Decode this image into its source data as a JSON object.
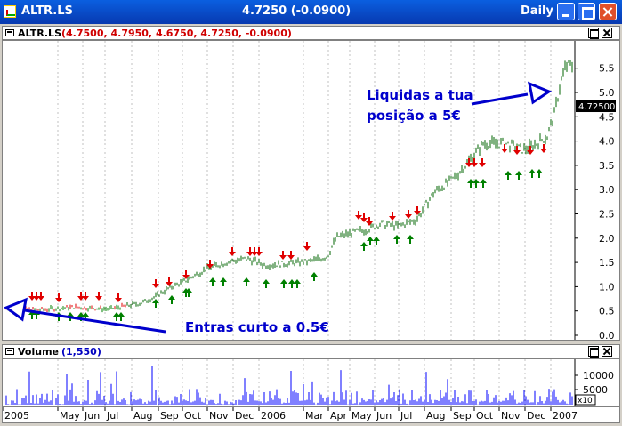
{
  "window": {
    "symbol": "ALTR.LS",
    "price_change": "4.7250 (-0.0900)",
    "period": "Daily"
  },
  "price_pane": {
    "symbol": "ALTR.LS",
    "ohlc": "(4.7500, 4.7950, 4.6750, 4.7250, -0.0900)",
    "last_price_label": "4.72500",
    "y_ticks": [
      "5.5",
      "5.0",
      "4.5",
      "4.0",
      "3.5",
      "3.0",
      "2.5",
      "2.0",
      "1.5",
      "1.0",
      "0.5",
      "0.0"
    ]
  },
  "volume_pane": {
    "label": "Volume",
    "value": "(1,550)",
    "y_ticks": [
      "10000",
      "5000"
    ],
    "multiplier": "x10"
  },
  "x_axis": {
    "labels": [
      "2005",
      "May",
      "Jun",
      "Jul",
      "Aug",
      "Sep",
      "Oct",
      "Nov",
      "Dec",
      "2006",
      "Mar",
      "Apr",
      "May",
      "Jun",
      "Jul",
      "Aug",
      "Sep",
      "Oct",
      "Nov",
      "Dec",
      "2007"
    ]
  },
  "annotations": {
    "exit": "Liquidas a tua posição a 5€",
    "exit_line1": "Liquidas a tua",
    "exit_line2": "posição a 5€",
    "entry": "Entras curto a 0.5€"
  },
  "colors": {
    "titlebar": "#0a4fd0",
    "bars": "#006400",
    "sell_arrow": "#e00000",
    "buy_arrow": "#008000",
    "annotation": "#0000cc",
    "volume": "#0000ff"
  }
}
